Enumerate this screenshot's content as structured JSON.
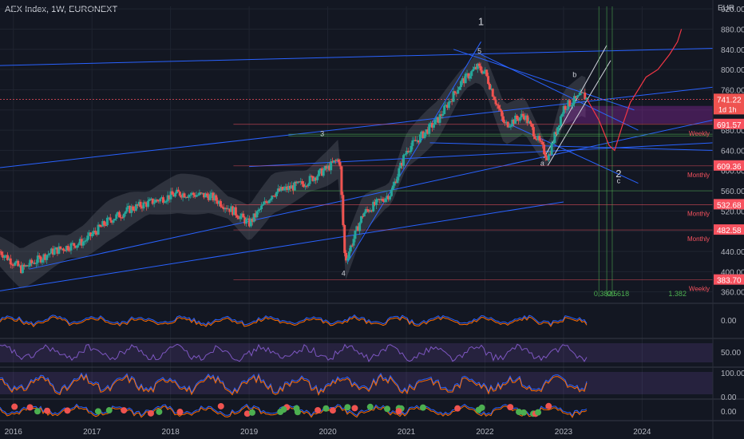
{
  "header": {
    "symbol": "AEX Index, 1W, EURONEXT",
    "currency": "EUR"
  },
  "colors": {
    "background": "#131722",
    "grid": "#1f2430",
    "bull": "#26a69a",
    "bear": "#ef5350",
    "trendline": "#2962ff",
    "projection": "#f23645",
    "level": "#f7525f",
    "macd": "#2962ff",
    "signal": "#ff6d00",
    "rsi": "#7e57c2",
    "stoch_k": "#2962ff",
    "stoch_d": "#ff6d00"
  },
  "chart_data": {
    "type": "candlestick",
    "x_axis": {
      "ticks": [
        "2016",
        "2017",
        "2018",
        "2019",
        "2020",
        "2021",
        "2022",
        "2023",
        "2024"
      ],
      "range": [
        2015.83,
        2024.9
      ]
    },
    "y_axis": {
      "ticks": [
        360,
        400,
        440,
        480,
        520,
        560,
        600,
        640,
        680,
        720,
        760,
        800,
        840,
        880,
        920
      ],
      "range": [
        350,
        925
      ],
      "scale": "linear"
    },
    "price_path": [
      [
        2015.83,
        440
      ],
      [
        2016.1,
        405
      ],
      [
        2016.5,
        440
      ],
      [
        2016.9,
        460
      ],
      [
        2017.2,
        500
      ],
      [
        2017.5,
        525
      ],
      [
        2017.9,
        545
      ],
      [
        2018.1,
        555
      ],
      [
        2018.5,
        550
      ],
      [
        2018.8,
        520
      ],
      [
        2019.0,
        495
      ],
      [
        2019.3,
        555
      ],
      [
        2019.7,
        575
      ],
      [
        2020.0,
        605
      ],
      [
        2020.15,
        625
      ],
      [
        2020.22,
        420
      ],
      [
        2020.45,
        515
      ],
      [
        2020.8,
        555
      ],
      [
        2021.0,
        640
      ],
      [
        2021.4,
        700
      ],
      [
        2021.7,
        775
      ],
      [
        2021.9,
        805
      ],
      [
        2022.0,
        795
      ],
      [
        2022.25,
        690
      ],
      [
        2022.5,
        710
      ],
      [
        2022.8,
        625
      ],
      [
        2023.0,
        725
      ],
      [
        2023.25,
        750
      ],
      [
        2023.3,
        741.22
      ]
    ],
    "last_price": "741.22",
    "countdown": "1d 1h",
    "price_labels": [
      {
        "value": 691.57,
        "text": "691.57",
        "tag": "Weekly"
      },
      {
        "value": 609.36,
        "text": "609.36",
        "tag": "Monthly"
      },
      {
        "value": 532.68,
        "text": "532.68",
        "tag": "Monthly"
      },
      {
        "value": 482.58,
        "text": "482.58",
        "tag": "Monthly"
      },
      {
        "value": 383.7,
        "text": "383.70",
        "tag": "Weekly"
      }
    ],
    "projection": [
      [
        2023.3,
        741
      ],
      [
        2023.45,
        700
      ],
      [
        2023.58,
        650
      ],
      [
        2023.65,
        640
      ],
      [
        2023.75,
        690
      ],
      [
        2023.85,
        735
      ],
      [
        2023.95,
        760
      ],
      [
        2024.05,
        785
      ],
      [
        2024.2,
        800
      ],
      [
        2024.35,
        830
      ],
      [
        2024.45,
        855
      ],
      [
        2024.5,
        880
      ]
    ],
    "wave_labels": [
      {
        "text": "1",
        "x": 2021.95,
        "y": 888
      },
      {
        "text": "3",
        "x": 2019.93,
        "y": 668
      },
      {
        "text": "4",
        "x": 2020.2,
        "y": 392
      },
      {
        "text": "5",
        "x": 2021.93,
        "y": 832
      },
      {
        "text": "a",
        "x": 2022.73,
        "y": 610
      },
      {
        "text": "b",
        "x": 2023.14,
        "y": 785
      },
      {
        "text": "2",
        "x": 2023.7,
        "y": 587
      },
      {
        "text": "c",
        "x": 2023.7,
        "y": 575
      }
    ],
    "fib_labels": [
      "0.382",
      "0.5",
      "0.618",
      "1.382"
    ],
    "indicators": [
      {
        "name": "MACD",
        "ticks": [
          "0.00"
        ]
      },
      {
        "name": "RSI",
        "ticks": [
          "50.00"
        ]
      },
      {
        "name": "Stochastic",
        "ticks": [
          "100.00",
          "0.00"
        ]
      },
      {
        "name": "Oscillator",
        "ticks": [
          "0.00"
        ]
      }
    ]
  }
}
